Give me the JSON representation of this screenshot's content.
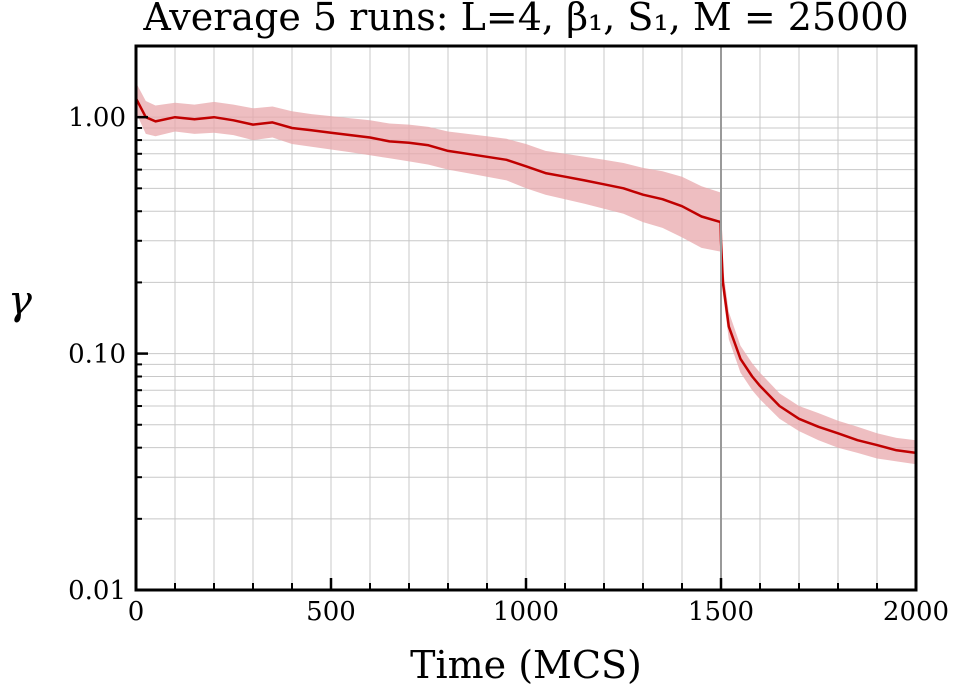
{
  "chart_data": {
    "type": "line",
    "title": "Average 5 runs: L=4, β₁, S₁, M = 25000",
    "xlabel": "Time (MCS)",
    "ylabel": "γ",
    "xlim": [
      0,
      2000
    ],
    "ylim": [
      0.01,
      2.0
    ],
    "yscale": "log",
    "grid": true,
    "x_ticks": [
      0,
      500,
      1000,
      1500,
      2000
    ],
    "x_tick_labels": [
      "0",
      "500",
      "1000",
      "1500",
      "2000"
    ],
    "y_ticks": [
      0.01,
      0.1,
      1.0
    ],
    "y_tick_labels": [
      "0.01",
      "0.10",
      "1.00"
    ],
    "vline_x": 1500,
    "colors": {
      "line": "#c00000",
      "band": "#e8a8ac",
      "vline": "#999999"
    },
    "series": [
      {
        "x": [
          0,
          25,
          50,
          100,
          150,
          200,
          250,
          300,
          350,
          400,
          450,
          500,
          550,
          600,
          650,
          700,
          750,
          800,
          850,
          900,
          950,
          1000,
          1050,
          1100,
          1150,
          1200,
          1250,
          1300,
          1350,
          1400,
          1450,
          1499,
          1500,
          1505,
          1520,
          1550,
          1580,
          1600,
          1650,
          1700,
          1750,
          1800,
          1850,
          1900,
          1950,
          2000
        ],
        "y": [
          1.2,
          1.0,
          0.96,
          1.0,
          0.98,
          1.0,
          0.97,
          0.93,
          0.95,
          0.9,
          0.88,
          0.86,
          0.84,
          0.82,
          0.79,
          0.78,
          0.76,
          0.72,
          0.7,
          0.68,
          0.66,
          0.62,
          0.58,
          0.56,
          0.54,
          0.52,
          0.5,
          0.47,
          0.45,
          0.42,
          0.38,
          0.36,
          0.3,
          0.2,
          0.13,
          0.095,
          0.08,
          0.073,
          0.06,
          0.053,
          0.049,
          0.046,
          0.043,
          0.041,
          0.039,
          0.038
        ],
        "lower": [
          1.05,
          0.85,
          0.83,
          0.87,
          0.85,
          0.86,
          0.84,
          0.8,
          0.82,
          0.77,
          0.75,
          0.73,
          0.71,
          0.69,
          0.67,
          0.65,
          0.63,
          0.6,
          0.58,
          0.56,
          0.54,
          0.5,
          0.47,
          0.45,
          0.43,
          0.41,
          0.39,
          0.36,
          0.34,
          0.31,
          0.28,
          0.27,
          0.25,
          0.18,
          0.115,
          0.083,
          0.07,
          0.064,
          0.053,
          0.047,
          0.043,
          0.04,
          0.038,
          0.036,
          0.035,
          0.034
        ],
        "upper": [
          1.4,
          1.17,
          1.12,
          1.15,
          1.13,
          1.16,
          1.13,
          1.09,
          1.11,
          1.06,
          1.03,
          1.01,
          0.99,
          0.97,
          0.94,
          0.93,
          0.91,
          0.87,
          0.85,
          0.83,
          0.81,
          0.77,
          0.72,
          0.7,
          0.68,
          0.66,
          0.64,
          0.61,
          0.59,
          0.56,
          0.51,
          0.48,
          0.38,
          0.23,
          0.15,
          0.108,
          0.091,
          0.083,
          0.068,
          0.06,
          0.056,
          0.052,
          0.049,
          0.046,
          0.044,
          0.043
        ]
      }
    ]
  }
}
